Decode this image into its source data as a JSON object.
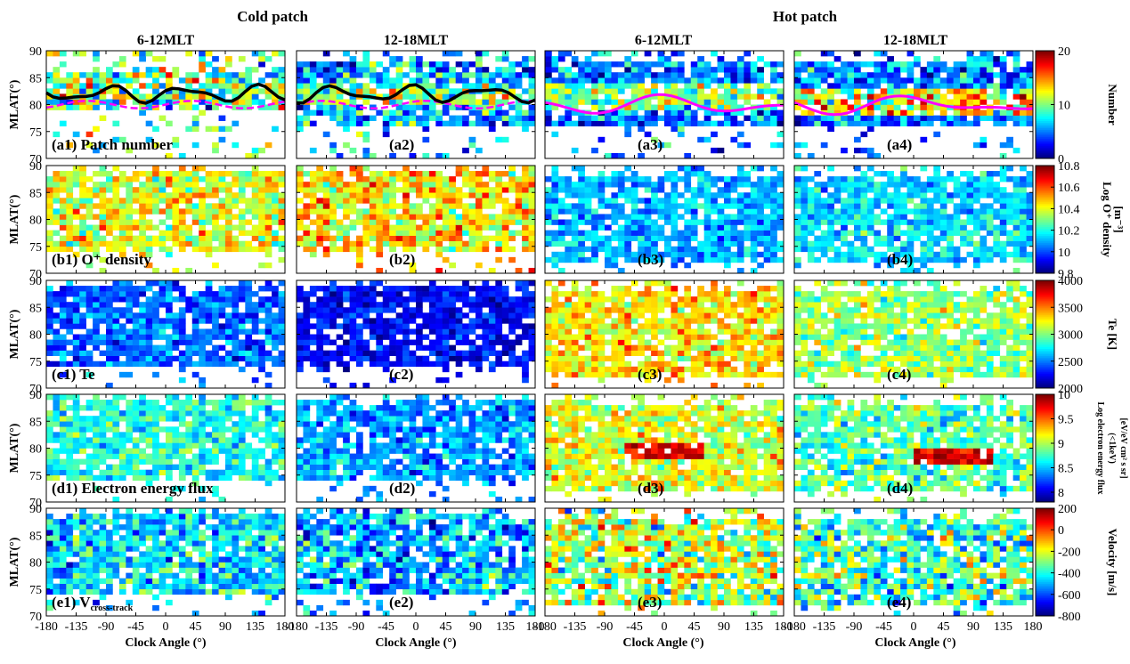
{
  "figure": {
    "group_titles": [
      "Cold patch",
      "Hot patch"
    ],
    "column_titles": [
      "6-12MLT",
      "12-18MLT",
      "6-12MLT",
      "12-18MLT"
    ],
    "x_axis_label": "Clock Angle (°)",
    "y_axis_label": "MLAT(°)"
  },
  "chart_data": {
    "type": "heatmap",
    "x_ticks": [
      -180,
      -135,
      -90,
      -45,
      0,
      45,
      90,
      135,
      180
    ],
    "x_tick_labels": [
      "-180",
      "-135",
      "-90",
      "-45",
      "0",
      "45",
      "90",
      "135",
      "180"
    ],
    "y_ticks": [
      70,
      75,
      80,
      85,
      90
    ],
    "xlim": [
      -180,
      180
    ],
    "ylim": [
      70,
      90
    ],
    "grid": false,
    "rows": [
      {
        "key": "a",
        "quantity": "Patch number",
        "colorbar_label": "Number",
        "colorbar_label_lines": [
          "Number"
        ],
        "colorbar_range": [
          0,
          20
        ],
        "colorbar_ticks": [
          0,
          10,
          20
        ],
        "panel_labels": [
          "(a1) Patch number",
          "(a2)",
          "(a3)",
          "(a4)"
        ],
        "panels": [
          {
            "column": "6-12MLT",
            "group": "Cold patch",
            "band": [
              79,
              86
            ],
            "core": [
              81,
              84
            ],
            "mean": 9,
            "spread": 6,
            "core_boost": 2,
            "rel_per_bin": [
              80,
              81,
              82,
              82
            ],
            "lower_curve": "magenta",
            "upper_curve": "black"
          },
          {
            "column": "12-18MLT",
            "group": "Cold patch",
            "band": [
              76,
              88
            ],
            "core": [
              80,
              84
            ],
            "mean": 6,
            "spread": 5,
            "core_boost": 3,
            "rel_per_bin": [
              80,
              81,
              82,
              82
            ]
          },
          {
            "column": "6-12MLT",
            "group": "Hot patch",
            "band": [
              76,
              88
            ],
            "core": [
              79,
              84
            ],
            "mean": 5,
            "spread": 4,
            "core_boost": 5
          },
          {
            "column": "12-18MLT",
            "group": "Hot patch",
            "band": [
              76,
              88
            ],
            "core": [
              78,
              83
            ],
            "mean": 5,
            "spread": 4,
            "core_boost": 8
          }
        ]
      },
      {
        "key": "b",
        "quantity": "O+ density",
        "colorbar_label": "Log O+ density [m-3]",
        "colorbar_label_lines": [
          "Log O⁺ density",
          "[m⁻³]"
        ],
        "colorbar_range": [
          9.8,
          10.8
        ],
        "colorbar_ticks": [
          9.8,
          10,
          10.2,
          10.4,
          10.6,
          10.8
        ],
        "panel_labels": [
          "(b1) O⁺ density",
          "(b2)",
          "(b3)",
          "(b4)"
        ],
        "panels": [
          {
            "mean": 10.4,
            "spread": 0.18
          },
          {
            "mean": 10.45,
            "spread": 0.2
          },
          {
            "mean": 10.1,
            "spread": 0.12
          },
          {
            "mean": 10.15,
            "spread": 0.13
          }
        ]
      },
      {
        "key": "c",
        "quantity": "Te",
        "colorbar_label": "Te [K]",
        "colorbar_label_lines": [
          "Te [K]"
        ],
        "colorbar_range": [
          2000,
          4000
        ],
        "colorbar_ticks": [
          2000,
          2500,
          3000,
          3500,
          4000
        ],
        "panel_labels": [
          "(c1) Te",
          "(c2)",
          "(c3)",
          "(c4)"
        ],
        "panels": [
          {
            "mean": 2450,
            "spread": 250
          },
          {
            "mean": 2250,
            "spread": 200
          },
          {
            "mean": 3300,
            "spread": 300
          },
          {
            "mean": 3050,
            "spread": 300
          }
        ]
      },
      {
        "key": "d",
        "quantity": "Electron energy flux",
        "colorbar_label": "Log electron energy flux (<1keV) [eV/eV cm2 s sr]",
        "colorbar_label_lines": [
          "Log electron energy flux",
          "(<1keV)",
          "[eV/eV cm² s sr]"
        ],
        "colorbar_range": [
          7.8,
          10
        ],
        "colorbar_ticks": [
          8,
          8.5,
          9,
          9.5,
          10
        ],
        "panel_labels": [
          "(d1) Electron energy flux",
          "(d2)",
          "(d3)",
          "(d4)"
        ],
        "panels": [
          {
            "mean": 8.7,
            "spread": 0.3
          },
          {
            "mean": 8.4,
            "spread": 0.3
          },
          {
            "mean": 9.1,
            "spread": 0.35,
            "hot": [
              -60,
              60,
              78,
              81
            ]
          },
          {
            "mean": 8.8,
            "spread": 0.35,
            "hot": [
              0,
              120,
              77,
              80
            ]
          }
        ]
      },
      {
        "key": "e",
        "quantity": "V cross-track",
        "colorbar_label": "Velocity [m/s]",
        "colorbar_label_lines": [
          "Velocity [m/s]"
        ],
        "colorbar_range": [
          -800,
          200
        ],
        "colorbar_ticks": [
          -800,
          -600,
          -400,
          -200,
          0,
          200
        ],
        "panel_labels": [
          "(e1) V",
          "(e2)",
          "(e3)",
          "(e4)"
        ],
        "panel_label_subscript": "cross-track",
        "panels": [
          {
            "mean": -450,
            "spread": 200
          },
          {
            "mean": -500,
            "spread": 200
          },
          {
            "mean": -250,
            "spread": 250
          },
          {
            "mean": -350,
            "spread": 250
          }
        ]
      }
    ],
    "curves": [
      {
        "name": "magenta",
        "panels": [
          "a1",
          "a2",
          "a3",
          "a4"
        ],
        "color": "#ff00ff",
        "style": "dashed in cold, solid in hot",
        "approx_level": 80
      },
      {
        "name": "black",
        "panels": [
          "a1",
          "a2"
        ],
        "color": "#000000",
        "style": "solid",
        "approx_level": 82
      }
    ]
  },
  "colors": {
    "colormap": "jet",
    "background": "#ffffff",
    "axes": "#000000"
  }
}
